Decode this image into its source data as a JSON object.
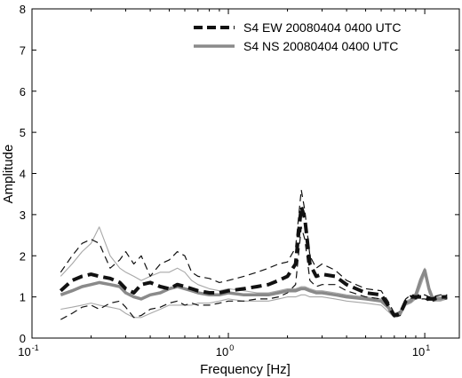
{
  "chart_data": {
    "type": "line",
    "title": "",
    "xlabel": "Frequency [Hz]",
    "ylabel": "Amplitude",
    "xscale": "log",
    "xlim": [
      0.1,
      15
    ],
    "ylim": [
      0,
      8
    ],
    "grid": false,
    "legend_position": "top-right",
    "x_ticks": [
      {
        "value": 0.1,
        "base": "10",
        "exp": "-1"
      },
      {
        "value": 1,
        "base": "10",
        "exp": "0"
      },
      {
        "value": 10,
        "base": "10",
        "exp": "1"
      }
    ],
    "y_ticks": [
      0,
      1,
      2,
      3,
      4,
      5,
      6,
      7,
      8
    ],
    "x": [
      0.14,
      0.16,
      0.18,
      0.2,
      0.22,
      0.25,
      0.28,
      0.3,
      0.33,
      0.36,
      0.4,
      0.45,
      0.5,
      0.55,
      0.6,
      0.65,
      0.7,
      0.8,
      0.9,
      1.0,
      1.2,
      1.4,
      1.6,
      1.8,
      2.0,
      2.2,
      2.35,
      2.45,
      2.6,
      2.8,
      3.0,
      3.5,
      4.0,
      5.0,
      6.0,
      6.5,
      7.0,
      7.5,
      8.0,
      8.5,
      9.0,
      9.5,
      10.0,
      10.5,
      11.0,
      12.0,
      13.0
    ],
    "series": [
      {
        "name": "S4 EW 20080404 0400 UTC",
        "color": "#111111",
        "style": "dashed-thick",
        "values": [
          1.15,
          1.4,
          1.5,
          1.55,
          1.5,
          1.45,
          1.35,
          1.2,
          1.1,
          1.3,
          1.35,
          1.25,
          1.2,
          1.3,
          1.25,
          1.2,
          1.15,
          1.1,
          1.1,
          1.15,
          1.2,
          1.25,
          1.3,
          1.4,
          1.5,
          1.8,
          3.2,
          2.9,
          1.8,
          1.5,
          1.55,
          1.5,
          1.3,
          1.1,
          1.05,
          0.8,
          0.55,
          0.6,
          0.9,
          1.0,
          1.0,
          1.0,
          1.0,
          0.95,
          0.95,
          1.0,
          1.0
        ]
      },
      {
        "name": "S4 NS 20080404 0400 UTC",
        "color": "#8a8a8a",
        "style": "solid-thick",
        "values": [
          1.05,
          1.15,
          1.25,
          1.3,
          1.35,
          1.3,
          1.25,
          1.1,
          1.0,
          0.95,
          1.05,
          1.1,
          1.2,
          1.25,
          1.2,
          1.15,
          1.1,
          1.05,
          1.05,
          1.1,
          1.05,
          1.05,
          1.05,
          1.1,
          1.15,
          1.15,
          1.2,
          1.2,
          1.15,
          1.1,
          1.1,
          1.05,
          1.0,
          0.95,
          0.9,
          0.75,
          0.55,
          0.6,
          0.85,
          0.9,
          1.05,
          1.4,
          1.65,
          1.2,
          0.95,
          0.95,
          1.0
        ]
      },
      {
        "name": "",
        "color": "#111111",
        "style": "dashed-thin",
        "values": [
          1.6,
          2.0,
          2.3,
          2.4,
          2.3,
          1.7,
          1.9,
          2.1,
          1.8,
          2.0,
          1.5,
          1.8,
          1.9,
          2.1,
          2.0,
          1.6,
          1.5,
          1.45,
          1.35,
          1.4,
          1.5,
          1.6,
          1.7,
          1.8,
          1.85,
          2.2,
          3.6,
          3.1,
          2.0,
          1.7,
          1.8,
          1.65,
          1.4,
          1.2,
          1.15,
          0.9,
          0.6,
          0.65,
          0.95,
          1.05,
          1.05,
          1.05,
          1.05,
          1.0,
          1.0,
          1.05,
          1.05
        ]
      },
      {
        "name": "",
        "color": "#111111",
        "style": "dashed-thin",
        "values": [
          0.45,
          0.6,
          0.75,
          0.8,
          0.7,
          0.85,
          0.9,
          0.75,
          0.5,
          0.55,
          0.7,
          0.75,
          0.85,
          0.9,
          0.8,
          0.85,
          0.8,
          0.8,
          0.85,
          0.9,
          0.9,
          0.95,
          0.95,
          1.0,
          1.1,
          1.3,
          2.7,
          2.4,
          1.4,
          1.25,
          1.3,
          1.3,
          1.15,
          1.0,
          0.95,
          0.7,
          0.5,
          0.55,
          0.85,
          0.95,
          0.95,
          0.95,
          0.95,
          0.9,
          0.9,
          0.95,
          0.95
        ]
      },
      {
        "name": "",
        "color": "#a8a8a8",
        "style": "solid-thin",
        "values": [
          1.5,
          1.8,
          2.1,
          2.3,
          2.7,
          2.0,
          1.7,
          1.6,
          1.5,
          1.4,
          1.5,
          1.6,
          1.6,
          1.7,
          1.6,
          1.4,
          1.3,
          1.2,
          1.15,
          1.2,
          1.15,
          1.1,
          1.1,
          1.15,
          1.2,
          1.2,
          1.25,
          1.25,
          1.2,
          1.15,
          1.15,
          1.1,
          1.05,
          1.0,
          0.95,
          0.8,
          0.6,
          0.65,
          0.9,
          0.95,
          1.1,
          1.45,
          1.7,
          1.25,
          1.0,
          1.0,
          1.05
        ]
      },
      {
        "name": "",
        "color": "#a8a8a8",
        "style": "solid-thin",
        "values": [
          0.7,
          0.75,
          0.8,
          0.85,
          0.8,
          0.75,
          0.7,
          0.6,
          0.5,
          0.5,
          0.6,
          0.7,
          0.8,
          0.8,
          0.8,
          0.8,
          0.85,
          0.85,
          0.9,
          0.95,
          0.9,
          0.9,
          0.9,
          0.95,
          1.0,
          1.0,
          1.05,
          1.05,
          1.0,
          1.0,
          1.0,
          0.95,
          0.9,
          0.85,
          0.8,
          0.65,
          0.5,
          0.55,
          0.8,
          0.85,
          0.95,
          1.25,
          1.55,
          1.1,
          0.9,
          0.9,
          0.95
        ]
      }
    ]
  }
}
